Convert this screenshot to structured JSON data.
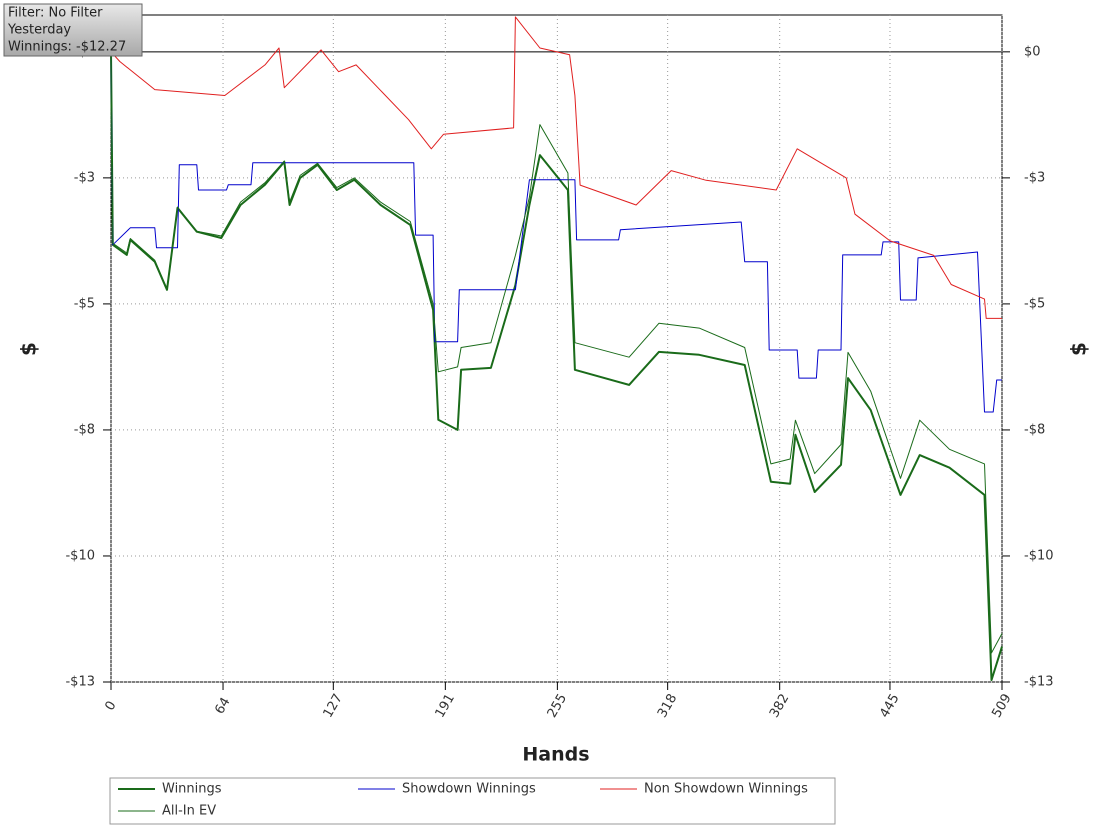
{
  "tooltip": {
    "lines": [
      "Filter: No Filter",
      "Yesterday",
      "Winnings: -$12.27"
    ]
  },
  "chart_data": {
    "type": "line",
    "xlabel": "Hands",
    "ylabel": "$",
    "xlim": [
      0,
      509
    ],
    "xticks": [
      0,
      64,
      127,
      191,
      255,
      318,
      382,
      445,
      509
    ],
    "ylim": [
      -13,
      0.76
    ],
    "yticks": [
      {
        "value": 0,
        "label": "$0"
      },
      {
        "value": -2.6,
        "label": "-$3"
      },
      {
        "value": -5.2,
        "label": "-$5"
      },
      {
        "value": -7.8,
        "label": "-$8"
      },
      {
        "value": -10.4,
        "label": "-$10"
      },
      {
        "value": -13,
        "label": "-$13"
      }
    ],
    "grid": true,
    "series": [
      {
        "name": "Winnings",
        "color": "#1a6b1a",
        "width": 2,
        "x": [
          0,
          1,
          9,
          11,
          25,
          32,
          38,
          49,
          63,
          74,
          88,
          99,
          102,
          108,
          118,
          129,
          139,
          154,
          171,
          184,
          187,
          198,
          200,
          217,
          231,
          239,
          245,
          261,
          265,
          296,
          313,
          336,
          362,
          377,
          388,
          391,
          402,
          417,
          421,
          434,
          451,
          462,
          479,
          499,
          503,
          509
        ],
        "values": [
          0,
          -3.98,
          -4.19,
          -3.88,
          -4.33,
          -4.91,
          -3.22,
          -3.71,
          -3.84,
          -3.16,
          -2.74,
          -2.27,
          -3.16,
          -2.6,
          -2.33,
          -2.85,
          -2.64,
          -3.16,
          -3.57,
          -5.32,
          -7.59,
          -7.8,
          -6.56,
          -6.52,
          -4.81,
          -3.16,
          -2.13,
          -2.85,
          -6.56,
          -6.87,
          -6.19,
          -6.25,
          -6.46,
          -8.87,
          -8.91,
          -7.9,
          -9.08,
          -8.52,
          -6.73,
          -7.39,
          -9.14,
          -8.32,
          -8.58,
          -9.14,
          -12.96,
          -12.27
        ]
      },
      {
        "name": "Showdown Winnings",
        "color": "#0000cc",
        "width": 1,
        "x": [
          0,
          1,
          11,
          25,
          26,
          38,
          39,
          49,
          50,
          66,
          67,
          80,
          81,
          173,
          174,
          184,
          185,
          198,
          199,
          231,
          239,
          265,
          266,
          290,
          291,
          360,
          362,
          375,
          376,
          392,
          393,
          403,
          404,
          417,
          418,
          440,
          441,
          450,
          451,
          460,
          461,
          495,
          499,
          504,
          506,
          509
        ],
        "values": [
          0,
          -3.98,
          -3.63,
          -3.63,
          -4.04,
          -4.04,
          -2.33,
          -2.33,
          -2.85,
          -2.85,
          -2.74,
          -2.74,
          -2.29,
          -2.29,
          -3.78,
          -3.78,
          -5.98,
          -5.98,
          -4.91,
          -4.91,
          -2.64,
          -2.64,
          -3.88,
          -3.88,
          -3.67,
          -3.51,
          -4.33,
          -4.33,
          -6.15,
          -6.15,
          -6.73,
          -6.73,
          -6.15,
          -6.15,
          -4.19,
          -4.19,
          -3.92,
          -3.92,
          -5.12,
          -5.12,
          -4.25,
          -4.13,
          -7.43,
          -7.43,
          -6.77,
          -6.77
        ]
      },
      {
        "name": "Non Showdown Winnings",
        "color": "#e02020",
        "width": 1,
        "x": [
          0,
          5,
          25,
          65,
          88,
          96,
          99,
          120,
          130,
          140,
          170,
          183,
          190,
          230,
          231,
          245,
          262,
          265,
          268,
          300,
          320,
          340,
          380,
          392,
          420,
          425,
          445,
          470,
          480,
          499,
          500,
          509
        ],
        "values": [
          0,
          -0.2,
          -0.78,
          -0.9,
          -0.27,
          0.08,
          -0.74,
          0.04,
          -0.41,
          -0.27,
          -1.4,
          -2.0,
          -1.7,
          -1.57,
          0.72,
          0.08,
          -0.06,
          -0.9,
          -2.75,
          -3.16,
          -2.45,
          -2.65,
          -2.85,
          -2.0,
          -2.6,
          -3.35,
          -3.9,
          -4.2,
          -4.8,
          -5.1,
          -5.5,
          -5.5
        ]
      },
      {
        "name": "All-In EV",
        "color": "#1a6b1a",
        "width": 1,
        "x": [
          0,
          1,
          9,
          11,
          25,
          32,
          38,
          49,
          63,
          74,
          88,
          99,
          102,
          108,
          118,
          129,
          139,
          154,
          171,
          184,
          187,
          198,
          200,
          217,
          231,
          239,
          245,
          261,
          265,
          296,
          313,
          336,
          362,
          377,
          388,
          391,
          402,
          417,
          421,
          434,
          451,
          462,
          479,
          499,
          503,
          509
        ],
        "values": [
          0,
          -3.95,
          -4.15,
          -3.85,
          -4.3,
          -4.9,
          -3.2,
          -3.7,
          -3.8,
          -3.1,
          -2.7,
          -2.25,
          -3.1,
          -2.55,
          -2.3,
          -2.8,
          -2.6,
          -3.1,
          -3.5,
          -5.2,
          -6.6,
          -6.5,
          -6.1,
          -6.0,
          -4.2,
          -3.0,
          -1.5,
          -2.5,
          -6.0,
          -6.3,
          -5.6,
          -5.7,
          -6.1,
          -8.5,
          -8.4,
          -7.6,
          -8.7,
          -8.1,
          -6.2,
          -7.0,
          -8.8,
          -7.6,
          -8.2,
          -8.5,
          -12.4,
          -12.0
        ]
      }
    ]
  }
}
